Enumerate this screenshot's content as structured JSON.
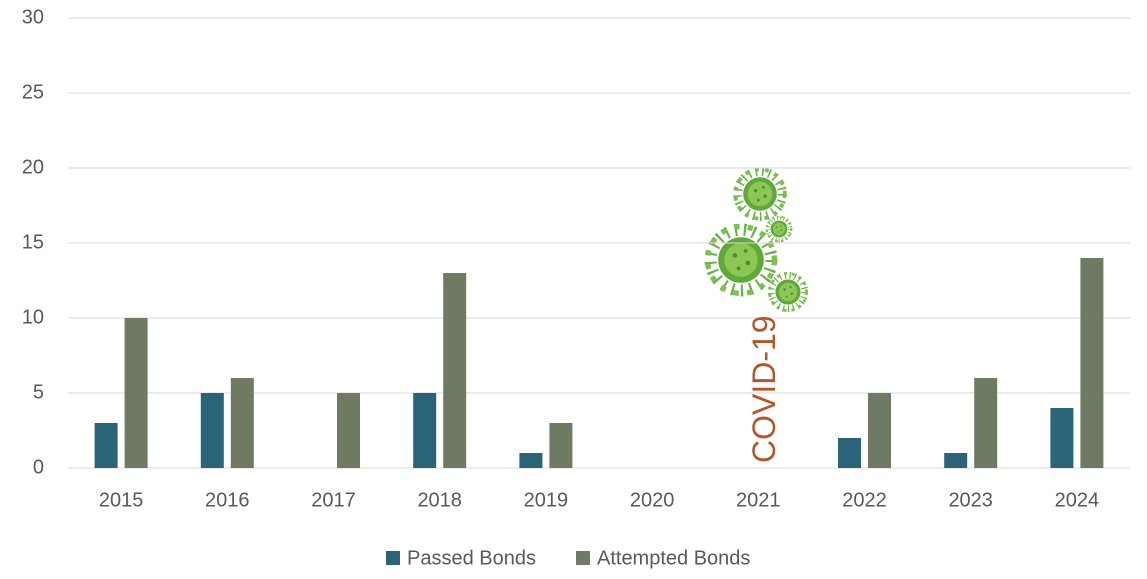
{
  "chart_data": {
    "type": "bar",
    "categories": [
      "2015",
      "2016",
      "2017",
      "2018",
      "2019",
      "2020",
      "2021",
      "2022",
      "2023",
      "2024"
    ],
    "series": [
      {
        "name": "Passed Bonds",
        "color": "#2a6478",
        "values": [
          3,
          5,
          0,
          5,
          1,
          0,
          0,
          2,
          1,
          4
        ]
      },
      {
        "name": "Attempted Bonds",
        "color": "#6e7b62",
        "values": [
          10,
          6,
          5,
          13,
          3,
          0,
          0,
          5,
          6,
          14
        ]
      }
    ],
    "ylim": [
      0,
      30
    ],
    "yticks": [
      0,
      5,
      10,
      15,
      20,
      25,
      30
    ],
    "grid": true,
    "annotation": "COVID-19",
    "annotation_color": "#b5562a"
  }
}
